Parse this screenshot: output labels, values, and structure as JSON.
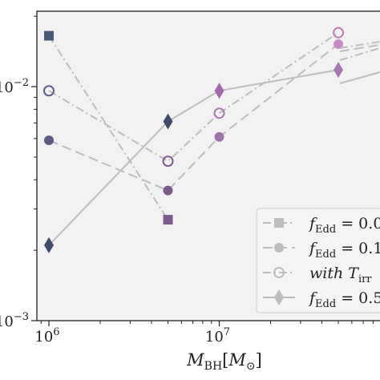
{
  "chart_data": {
    "type": "line",
    "x_scale": "log",
    "y_scale": "log",
    "xlabel_main": "M",
    "xlabel_sub": "BH",
    "xlabel_unit_main": "M",
    "xlabel_unit_sub": "⊙",
    "xlim": [
      850000,
      100000000
    ],
    "ylim": [
      0.001,
      0.021
    ],
    "x_ticks": [
      {
        "value": 1000000,
        "base": "10",
        "exp": "6"
      },
      {
        "value": 10000000,
        "base": "10",
        "exp": "7"
      }
    ],
    "y_ticks": [
      {
        "value": 0.01,
        "label": "10",
        "exp": "−2"
      },
      {
        "value": 0.001,
        "label": "10",
        "exp": "−3"
      }
    ],
    "grid": false,
    "legend_position": "lower-right",
    "series": [
      {
        "name_main": "f",
        "name_sub": "Edd",
        "name_rest": " = 0.0",
        "marker": "square",
        "line_style": "dashdot",
        "color": "#4a5878",
        "x": [
          1000000,
          5000000
        ],
        "y": [
          0.0165,
          0.0027
        ],
        "extra_points": []
      },
      {
        "name_main": "f",
        "name_sub": "Edd",
        "name_rest": " = 0.1",
        "marker": "circle",
        "line_style": "dashed",
        "color": "#5a5a84",
        "x": [
          1000000,
          5000000,
          10000000,
          50000000
        ],
        "y": [
          0.0059,
          0.0036,
          0.0061,
          0.0152
        ],
        "extra_points": []
      },
      {
        "name_main": "with T",
        "name_sub": "irr",
        "name_rest": "",
        "marker": "open-circle",
        "line_style": "dashdot",
        "color": "#4f5a80",
        "x": [
          1000000,
          5000000,
          10000000,
          50000000
        ],
        "y": [
          0.0096,
          0.0048,
          0.0077,
          0.017
        ],
        "extra_points": []
      },
      {
        "name_main": "f",
        "name_sub": "Edd",
        "name_rest": " = 0.5",
        "marker": "diamond",
        "line_style": "solid",
        "color": "#3f4d6b",
        "x": [
          1000000,
          5000000,
          10000000,
          50000000
        ],
        "y": [
          0.0021,
          0.0071,
          0.0096,
          0.0118
        ],
        "extra_points": []
      }
    ],
    "point_colors": {
      "square": [
        "#4a5878",
        "#7d5a8c",
        "#a878b0",
        "#c888c4"
      ],
      "circle": [
        "#5a5a84",
        "#7d5a8c",
        "#a070a8",
        "#c888c4"
      ],
      "open-circle": [
        "#5a5f88",
        "#7e5d90",
        "#a878b0",
        "#c47cb4"
      ],
      "diamond": [
        "#3f4d6b",
        "#3f4d6b",
        "#a06ba8",
        "#a878b0"
      ]
    }
  }
}
